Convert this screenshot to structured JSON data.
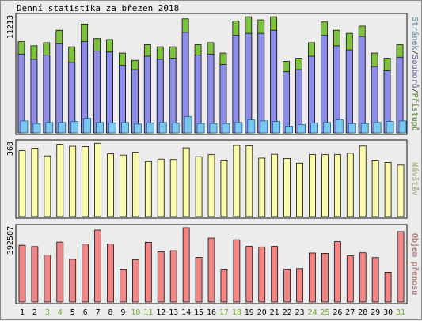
{
  "chart_data": {
    "type": "bar",
    "title": "Denní statistika za březen 2018",
    "categories": [
      "1",
      "2",
      "3",
      "4",
      "5",
      "6",
      "7",
      "8",
      "9",
      "10",
      "11",
      "12",
      "13",
      "14",
      "15",
      "16",
      "17",
      "18",
      "19",
      "20",
      "21",
      "22",
      "23",
      "24",
      "25",
      "26",
      "27",
      "28",
      "29",
      "30",
      "31"
    ],
    "weekend_days": [
      "3",
      "4",
      "10",
      "11",
      "17",
      "18",
      "24",
      "25",
      "31"
    ],
    "panels": [
      {
        "id": "hits",
        "max_label": "11213",
        "ymax": 11213,
        "legend": [
          "Stránek",
          "Souborů",
          "Přístupů"
        ],
        "series": [
          {
            "name": "Přístupů",
            "color": "#7ec13c",
            "values": [
              8800,
              8400,
              8700,
              9900,
              8300,
              10500,
              9100,
              9000,
              7700,
              7000,
              8500,
              8300,
              8300,
              11000,
              8500,
              8700,
              7700,
              10800,
              11200,
              10900,
              11200,
              6900,
              7200,
              8700,
              10700,
              9900,
              9600,
              10300,
              7700,
              7200,
              8500
            ]
          },
          {
            "name": "Souborů",
            "color": "#8b8de8",
            "values": [
              7600,
              7100,
              7500,
              8600,
              6800,
              8800,
              7900,
              7800,
              6500,
              6100,
              7400,
              7100,
              7200,
              9700,
              7500,
              7600,
              6600,
              9400,
              9600,
              9600,
              9900,
              5900,
              6100,
              7400,
              9400,
              8400,
              8000,
              9300,
              6400,
              6000,
              7300
            ]
          },
          {
            "name": "Stránek",
            "color": "#79c8f2",
            "values": [
              1150,
              900,
              1000,
              1000,
              1100,
              1400,
              1000,
              950,
              1000,
              850,
              950,
              1000,
              950,
              1550,
              900,
              900,
              900,
              1000,
              1250,
              1150,
              1100,
              650,
              800,
              950,
              1000,
              1250,
              900,
              900,
              1000,
              1100,
              1150
            ]
          }
        ]
      },
      {
        "id": "visits",
        "max_label": "368",
        "ymax": 368,
        "legend": [
          "Návštěv"
        ],
        "series": [
          {
            "name": "Návštěv",
            "color": "#fcfca8",
            "values": [
              330,
              342,
              304,
              362,
              352,
              350,
              367,
              314,
              308,
              322,
              276,
              288,
              286,
              344,
              300,
              310,
              283,
              356,
              354,
              293,
              312,
              291,
              268,
              310,
              310,
              310,
              317,
              353,
              283,
              271,
              258
            ]
          }
        ]
      },
      {
        "id": "transfer",
        "max_label": "392507",
        "ymax": 392507,
        "legend": [
          "Objem přenosu"
        ],
        "series": [
          {
            "name": "Objem přenosu",
            "color": "#f28686",
            "values": [
              300000,
              293000,
              249000,
              317000,
              226000,
              306000,
              380000,
              307000,
              173000,
              223000,
              316000,
              265000,
              271000,
              392507,
              236000,
              338000,
              173000,
              329000,
              294000,
              291000,
              294000,
              173000,
              176000,
              259000,
              257000,
              319000,
              244000,
              260000,
              235000,
              157000,
              372000
            ]
          }
        ]
      }
    ]
  },
  "colors": {
    "weekday_label": "#000000",
    "weekend_label": "#6fae2a",
    "legend_slash": "#222222"
  }
}
